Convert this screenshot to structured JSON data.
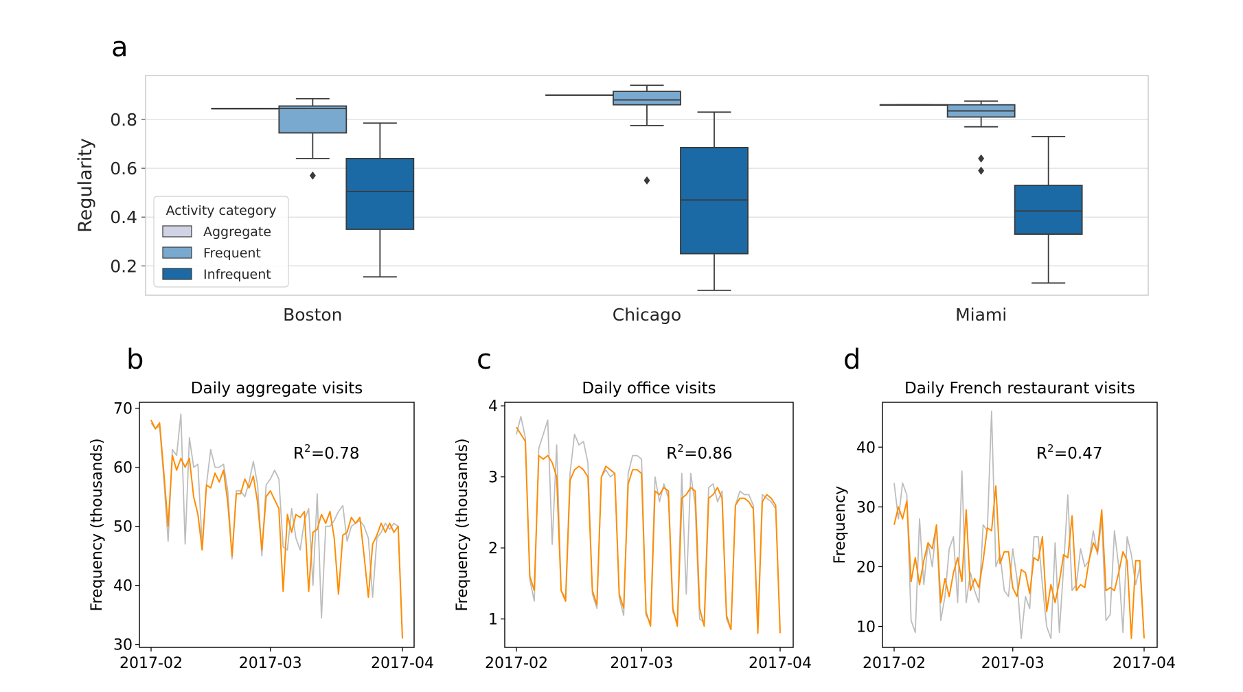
{
  "panels": {
    "a": "a",
    "b": "b",
    "c": "c",
    "d": "d"
  },
  "colors": {
    "aggregate": "#cfd3e5",
    "frequent": "#79a9cf",
    "infrequent": "#1b6aa5",
    "box_edge": "#3a3a3a",
    "observed": "#bdbdbd",
    "predicted": "#ff8c00",
    "grid": "#dddddd"
  },
  "chart_data": [
    {
      "id": "a",
      "type": "box",
      "ylabel": "Regularity",
      "ylim": [
        0.08,
        0.98
      ],
      "yticks": [
        "0.2",
        "0.4",
        "0.6",
        "0.8"
      ],
      "grid": true,
      "categories": [
        "Boston",
        "Chicago",
        "Miami"
      ],
      "legend": {
        "title": "Activity category",
        "position": "lower-left",
        "entries": [
          "Aggregate",
          "Frequent",
          "Infrequent"
        ]
      },
      "series": [
        {
          "name": "Aggregate",
          "boxes": [
            {
              "min": 0.845,
              "q1": 0.845,
              "median": 0.845,
              "q3": 0.845,
              "max": 0.845,
              "outliers": []
            },
            {
              "min": 0.9,
              "q1": 0.9,
              "median": 0.9,
              "q3": 0.9,
              "max": 0.9,
              "outliers": []
            },
            {
              "min": 0.86,
              "q1": 0.86,
              "median": 0.86,
              "q3": 0.86,
              "max": 0.86,
              "outliers": []
            }
          ]
        },
        {
          "name": "Frequent",
          "boxes": [
            {
              "min": 0.64,
              "q1": 0.745,
              "median": 0.845,
              "q3": 0.855,
              "max": 0.885,
              "outliers": [
                0.57
              ]
            },
            {
              "min": 0.775,
              "q1": 0.86,
              "median": 0.88,
              "q3": 0.915,
              "max": 0.94,
              "outliers": [
                0.55
              ]
            },
            {
              "min": 0.77,
              "q1": 0.81,
              "median": 0.835,
              "q3": 0.86,
              "max": 0.875,
              "outliers": [
                0.64,
                0.59
              ]
            }
          ]
        },
        {
          "name": "Infrequent",
          "boxes": [
            {
              "min": 0.155,
              "q1": 0.35,
              "median": 0.505,
              "q3": 0.64,
              "max": 0.785,
              "outliers": []
            },
            {
              "min": 0.1,
              "q1": 0.25,
              "median": 0.47,
              "q3": 0.685,
              "max": 0.83,
              "outliers": []
            },
            {
              "min": 0.13,
              "q1": 0.33,
              "median": 0.425,
              "q3": 0.53,
              "max": 0.73,
              "outliers": []
            }
          ]
        }
      ]
    },
    {
      "id": "b",
      "type": "line",
      "title": "Daily aggregate visits",
      "ylabel": "Frequency (thousands)",
      "xticks": [
        "2017-02",
        "2017-03",
        "2017-04"
      ],
      "x_range": [
        "2017-02-01",
        "2017-04-01"
      ],
      "ylim": [
        29.5,
        71
      ],
      "yticks": [
        "30",
        "40",
        "50",
        "60",
        "70"
      ],
      "annotation": "=0.78",
      "series": [
        {
          "role": "observed",
          "values": [
            67.5,
            66.5,
            67,
            58,
            47.5,
            63,
            62,
            69,
            47,
            65,
            60,
            60.5,
            46.5,
            57,
            63,
            60,
            60,
            60.5,
            56,
            44.5,
            56,
            56,
            55,
            57.5,
            61,
            57,
            45,
            57,
            58,
            59.5,
            58,
            46.5,
            46,
            53,
            48,
            46,
            51,
            53,
            40,
            55.5,
            34.5,
            50,
            50,
            51,
            52.5,
            53.5,
            47.5,
            50,
            50.5,
            51,
            50,
            48,
            38,
            48,
            49,
            50.5,
            49.5,
            50.5,
            50,
            31
          ]
        },
        {
          "role": "predicted",
          "values": [
            68,
            66.5,
            67.5,
            59,
            50,
            62,
            59.5,
            61.5,
            60,
            61.5,
            55,
            52,
            46,
            57,
            56.5,
            59,
            57.5,
            59.5,
            54,
            45,
            55.5,
            55.5,
            58,
            56.5,
            58.5,
            54,
            46,
            55,
            56,
            54.5,
            53,
            39,
            52,
            49,
            52,
            51.5,
            52.5,
            39,
            49,
            49.5,
            52,
            50.5,
            52.5,
            48,
            38.5,
            48.5,
            49,
            51.5,
            50.5,
            51.5,
            45,
            38,
            47,
            48.5,
            50.5,
            49,
            50.5,
            49,
            50,
            31
          ]
        }
      ]
    },
    {
      "id": "c",
      "type": "line",
      "title": "Daily office visits",
      "ylabel": "Frequency (thousands)",
      "xticks": [
        "2017-02",
        "2017-03",
        "2017-04"
      ],
      "x_range": [
        "2017-02-01",
        "2017-04-01"
      ],
      "ylim": [
        0.6,
        4.05
      ],
      "yticks": [
        "1",
        "2",
        "3",
        "4"
      ],
      "annotation": "=0.86",
      "series": [
        {
          "role": "observed",
          "values": [
            3.6,
            3.85,
            3.55,
            1.55,
            1.25,
            3.4,
            3.6,
            3.8,
            2.05,
            3.45,
            1.4,
            1.3,
            3.05,
            3.6,
            3.45,
            3.5,
            3.2,
            1.35,
            1.15,
            3.0,
            3.1,
            3.0,
            3.05,
            1.3,
            1.05,
            3.05,
            3.3,
            3.3,
            3.25,
            1.05,
            0.95,
            3.0,
            2.65,
            2.9,
            2.7,
            1.1,
            0.95,
            3.05,
            1.35,
            3.05,
            2.6,
            1.0,
            0.95,
            2.85,
            2.9,
            2.65,
            2.8,
            1.0,
            0.85,
            2.6,
            2.8,
            2.75,
            2.75,
            2.6,
            0.85,
            2.75,
            2.7,
            2.65,
            2.55,
            0.85
          ]
        },
        {
          "role": "predicted",
          "values": [
            3.7,
            3.6,
            3.5,
            1.6,
            1.4,
            3.3,
            3.25,
            3.3,
            3.2,
            3.0,
            1.4,
            1.25,
            2.95,
            3.1,
            3.15,
            3.1,
            3.0,
            1.4,
            1.2,
            3.0,
            3.15,
            3.1,
            3.05,
            1.35,
            1.15,
            2.9,
            3.1,
            3.1,
            3.05,
            1.1,
            0.9,
            2.8,
            2.75,
            2.85,
            2.8,
            1.15,
            0.9,
            2.7,
            2.75,
            2.85,
            2.8,
            1.15,
            0.9,
            2.7,
            2.75,
            2.85,
            2.7,
            1.05,
            0.85,
            2.6,
            2.7,
            2.7,
            2.65,
            2.55,
            0.8,
            2.65,
            2.75,
            2.7,
            2.6,
            0.8
          ]
        }
      ]
    },
    {
      "id": "d",
      "type": "line",
      "title": "Daily French restaurant visits",
      "ylabel": "Frequency",
      "xticks": [
        "2017-02",
        "2017-03",
        "2017-04"
      ],
      "x_range": [
        "2017-02-01",
        "2017-04-01"
      ],
      "ylim": [
        6.5,
        47.5
      ],
      "yticks": [
        "10",
        "20",
        "30",
        "40"
      ],
      "annotation": "=0.47",
      "series": [
        {
          "role": "observed",
          "values": [
            34,
            28,
            34,
            32,
            11,
            9,
            28,
            17,
            24,
            20,
            27,
            11,
            15,
            23,
            25,
            14,
            36,
            14,
            19,
            16,
            14,
            27,
            26,
            46,
            20,
            22,
            16,
            15,
            23,
            18,
            8,
            15,
            13,
            25,
            25,
            17,
            10,
            8,
            24,
            9,
            20,
            32,
            16,
            17,
            23,
            20,
            21,
            26,
            22,
            28,
            11,
            12,
            26,
            20,
            9,
            25,
            22,
            17,
            20,
            8
          ]
        },
        {
          "role": "predicted",
          "values": [
            27,
            30,
            28,
            31,
            17.5,
            21.5,
            17,
            21,
            24,
            23,
            27,
            14,
            18,
            15,
            19,
            21.5,
            17.5,
            29.5,
            16,
            18,
            16.5,
            21,
            26.5,
            26,
            33.5,
            20.5,
            22.5,
            22.5,
            16.5,
            15,
            19.5,
            19,
            15.5,
            21.5,
            21,
            25,
            12.5,
            17,
            14,
            17.5,
            22,
            21.5,
            28.5,
            16,
            17,
            16.5,
            21,
            24,
            22.5,
            29.5,
            16,
            16.5,
            16,
            19,
            22.5,
            21,
            8,
            21,
            21,
            8
          ]
        }
      ]
    }
  ]
}
